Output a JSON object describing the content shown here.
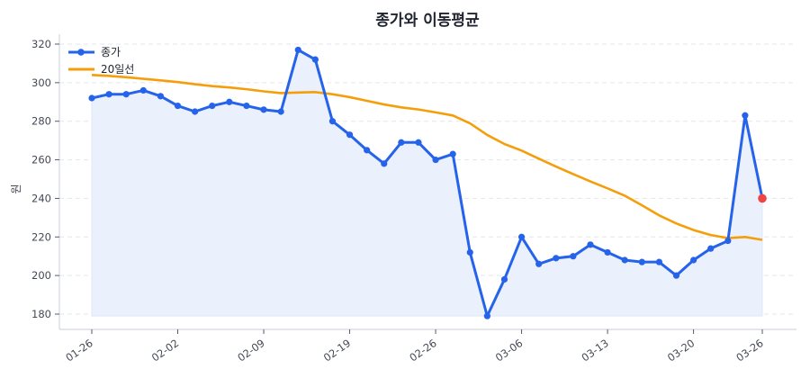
{
  "chart_data": {
    "type": "line",
    "title": "종가와 이동평균",
    "xlabel": "",
    "ylabel": "원",
    "ylim": [
      173,
      325
    ],
    "yticks": [
      180,
      200,
      220,
      240,
      260,
      280,
      300,
      320
    ],
    "xtick_labels": [
      {
        "index": 0,
        "label": "01-26"
      },
      {
        "index": 5,
        "label": "02-02"
      },
      {
        "index": 10,
        "label": "02-09"
      },
      {
        "index": 15,
        "label": "02-19"
      },
      {
        "index": 20,
        "label": "02-26"
      },
      {
        "index": 25,
        "label": "03-06"
      },
      {
        "index": 30,
        "label": "03-13"
      },
      {
        "index": 35,
        "label": "03-20"
      },
      {
        "index": 39,
        "label": "03-26"
      }
    ],
    "grid": true,
    "legend_position": "upper left",
    "colors": {
      "close": "#2563eb",
      "ma20": "#f59e0b",
      "fill": "#eaf0fc",
      "last_point": "#ef4444",
      "grid": "#e3e6ec",
      "axis": "#d3d7df"
    },
    "series": [
      {
        "name": "종가",
        "marker": "circle",
        "values": [
          292,
          294,
          294,
          296,
          293,
          288,
          285,
          288,
          290,
          288,
          286,
          285,
          317,
          312,
          280,
          273,
          265,
          258,
          269,
          269,
          260,
          263,
          212,
          179,
          198,
          220,
          206,
          209,
          210,
          216,
          212,
          208,
          207,
          207,
          200,
          208,
          214,
          218,
          283,
          240
        ]
      },
      {
        "name": "20일선",
        "marker": "none",
        "values": [
          304,
          303.5,
          302.8,
          302,
          301.2,
          300.3,
          299.2,
          298.2,
          297.5,
          296.6,
          295.5,
          294.6,
          294.9,
          295.1,
          294,
          292.5,
          290.6,
          288.7,
          287.2,
          286.1,
          284.6,
          283,
          278.9,
          272.9,
          268.2,
          264.8,
          260.6,
          256.5,
          252.6,
          248.8,
          245.2,
          241.4,
          236.4,
          231.2,
          227,
          223.6,
          221,
          219.4,
          220,
          218.5
        ]
      }
    ],
    "highlight": {
      "index": 39,
      "value": 240
    }
  }
}
